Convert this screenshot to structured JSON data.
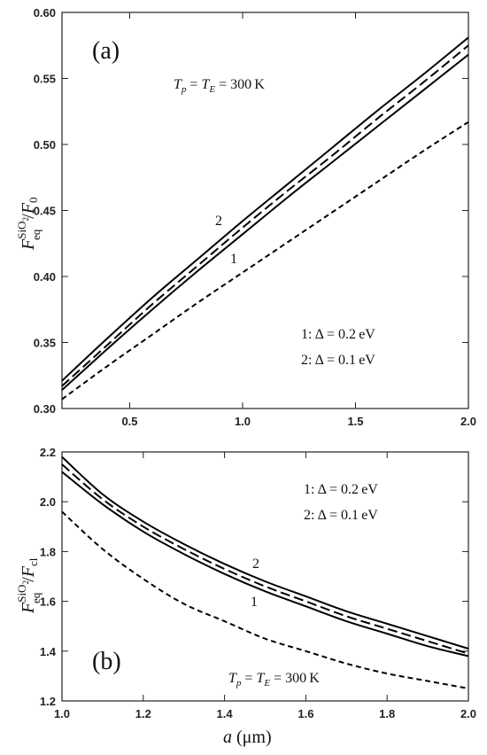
{
  "chart_data": [
    {
      "type": "line",
      "panel_label": "(a)",
      "ylabel": "F_eq^{SiO2}/F_0",
      "ylabel_parts": {
        "F": "F",
        "sup": "SiO",
        "sub2": "2",
        "sub": "eq",
        "slash": "/",
        "den": "F",
        "den_sub": "0"
      },
      "condition": "T_p = T_E = 300 K",
      "condition_parts": {
        "a": "T",
        "a_sub": "p",
        "eq1": "=",
        "b": "T",
        "b_sub": "E",
        "eq2": "= 300 K"
      },
      "legend": [
        "1:  Δ = 0.2 eV",
        "2:  Δ = 0.1 eV"
      ],
      "legend_position": "lower-right",
      "curve_labels": [
        "2",
        "1"
      ],
      "xlim": [
        0.2,
        2.0
      ],
      "ylim": [
        0.3,
        0.6
      ],
      "xticks": [
        "0.5",
        "1.0",
        "1.5",
        "2.0"
      ],
      "xtick_values": [
        0.5,
        1.0,
        1.5,
        2.0
      ],
      "yticks": [
        "0.30",
        "0.35",
        "0.40",
        "0.45",
        "0.50",
        "0.55",
        "0.60"
      ],
      "ytick_values": [
        0.3,
        0.35,
        0.4,
        0.45,
        0.5,
        0.55,
        0.6
      ],
      "grid": false,
      "series": [
        {
          "style": "solid",
          "x": [
            0.2,
            0.4,
            0.6,
            0.8,
            1.0,
            1.2,
            1.4,
            1.6,
            1.8,
            2.0
          ],
          "y": [
            0.321,
            0.353,
            0.384,
            0.413,
            0.442,
            0.47,
            0.498,
            0.526,
            0.553,
            0.581
          ]
        },
        {
          "style": "dash-long",
          "x": [
            0.2,
            0.4,
            0.6,
            0.8,
            1.0,
            1.2,
            1.4,
            1.6,
            1.8,
            2.0
          ],
          "y": [
            0.317,
            0.348,
            0.379,
            0.408,
            0.437,
            0.465,
            0.492,
            0.52,
            0.547,
            0.575
          ]
        },
        {
          "style": "solid",
          "x": [
            0.2,
            0.4,
            0.6,
            0.8,
            1.0,
            1.2,
            1.4,
            1.6,
            1.8,
            2.0
          ],
          "y": [
            0.314,
            0.345,
            0.375,
            0.404,
            0.432,
            0.46,
            0.487,
            0.514,
            0.541,
            0.568
          ]
        },
        {
          "style": "dash-short",
          "x": [
            0.2,
            0.4,
            0.6,
            0.8,
            1.0,
            1.2,
            1.4,
            1.6,
            1.8,
            2.0
          ],
          "y": [
            0.307,
            0.332,
            0.356,
            0.38,
            0.403,
            0.426,
            0.449,
            0.472,
            0.495,
            0.517
          ]
        }
      ]
    },
    {
      "type": "line",
      "panel_label": "(b)",
      "ylabel": "F_eq^{SiO2}/F_cl",
      "ylabel_parts": {
        "F": "F",
        "sup": "SiO",
        "sub2": "2",
        "sub": "eq",
        "slash": "/",
        "den": "F",
        "den_sub": "cl"
      },
      "xlabel": "a (μm)",
      "xlabel_parts": {
        "var": "a",
        "unit": " (μm)"
      },
      "condition": "T_p = T_E = 300 K",
      "condition_parts": {
        "a": "T",
        "a_sub": "p",
        "eq1": "=",
        "b": "T",
        "b_sub": "E",
        "eq2": "= 300 K"
      },
      "legend": [
        "1: Δ = 0.2 eV",
        "2: Δ = 0.1 eV"
      ],
      "legend_position": "top-right",
      "curve_labels": [
        "2",
        "1"
      ],
      "xlim": [
        1.0,
        2.0
      ],
      "ylim": [
        1.2,
        2.2
      ],
      "xticks": [
        "1.0",
        "1.2",
        "1.4",
        "1.6",
        "1.8",
        "2.0"
      ],
      "xtick_values": [
        1.0,
        1.2,
        1.4,
        1.6,
        1.8,
        2.0
      ],
      "yticks": [
        "1.2",
        "1.4",
        "1.6",
        "1.8",
        "2.0",
        "2.2"
      ],
      "ytick_values": [
        1.2,
        1.4,
        1.6,
        1.8,
        2.0,
        2.2
      ],
      "grid": false,
      "series": [
        {
          "style": "solid",
          "x": [
            1.0,
            1.1,
            1.2,
            1.3,
            1.4,
            1.5,
            1.6,
            1.7,
            1.8,
            1.9,
            2.0
          ],
          "y": [
            2.18,
            2.03,
            1.92,
            1.83,
            1.75,
            1.68,
            1.62,
            1.56,
            1.51,
            1.46,
            1.41
          ]
        },
        {
          "style": "dash-long",
          "x": [
            1.0,
            1.1,
            1.2,
            1.3,
            1.4,
            1.5,
            1.6,
            1.7,
            1.8,
            1.9,
            2.0
          ],
          "y": [
            2.15,
            2.01,
            1.9,
            1.81,
            1.73,
            1.66,
            1.6,
            1.54,
            1.49,
            1.44,
            1.39
          ]
        },
        {
          "style": "solid",
          "x": [
            1.0,
            1.1,
            1.2,
            1.3,
            1.4,
            1.5,
            1.6,
            1.7,
            1.8,
            1.9,
            2.0
          ],
          "y": [
            2.12,
            1.99,
            1.88,
            1.79,
            1.71,
            1.64,
            1.58,
            1.52,
            1.47,
            1.42,
            1.38
          ]
        },
        {
          "style": "dash-short",
          "x": [
            1.0,
            1.1,
            1.2,
            1.3,
            1.4,
            1.5,
            1.6,
            1.7,
            1.8,
            1.9,
            2.0
          ],
          "y": [
            1.96,
            1.81,
            1.69,
            1.59,
            1.52,
            1.45,
            1.4,
            1.35,
            1.31,
            1.28,
            1.25
          ]
        }
      ]
    }
  ]
}
